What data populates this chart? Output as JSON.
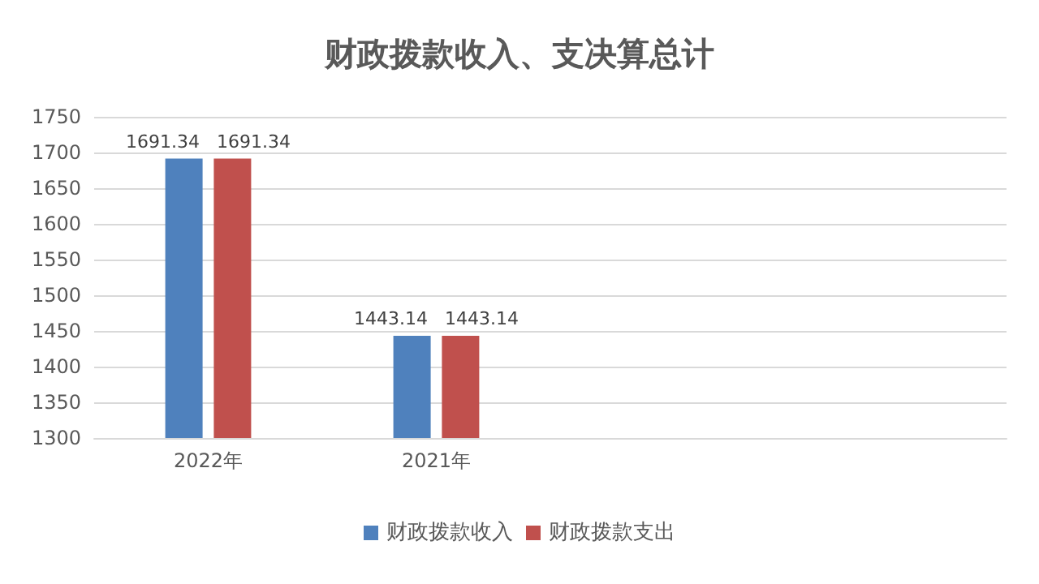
{
  "chart_data": {
    "type": "bar",
    "title": "财政拨款收入、支决算总计",
    "categories": [
      "2022年",
      "2021年",
      null,
      null
    ],
    "series": [
      {
        "name": "财政拨款收入",
        "color": "#4f81bd",
        "values": [
          1691.34,
          1443.14,
          null,
          null
        ]
      },
      {
        "name": "财政拨款支出",
        "color": "#c0504d",
        "values": [
          1691.34,
          1443.14,
          null,
          null
        ]
      }
    ],
    "ylim": [
      1300,
      1750
    ],
    "yticks": [
      1300,
      1350,
      1400,
      1450,
      1500,
      1550,
      1600,
      1650,
      1700,
      1750
    ],
    "grid": "y",
    "legend": "bottom",
    "data_labels": true
  }
}
